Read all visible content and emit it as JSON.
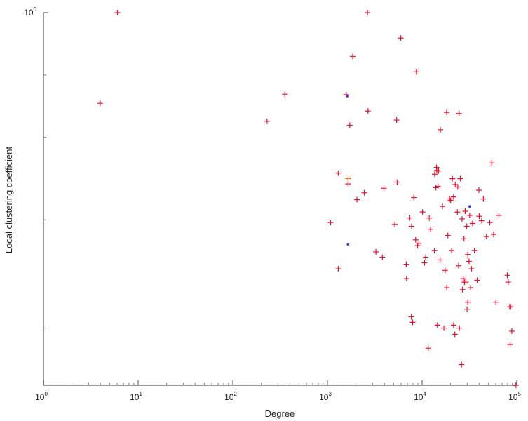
{
  "chart_data": {
    "type": "scatter",
    "xlabel": "Degree",
    "ylabel": "Local clustering coefficient",
    "x_scale": "log",
    "y_scale": "log",
    "xlim": [
      1,
      100000
    ],
    "ylim": [
      0.0159,
      1
    ],
    "x_ticks": [
      {
        "value": 1,
        "base": "10",
        "exp": "0"
      },
      {
        "value": 10,
        "base": "10",
        "exp": "1"
      },
      {
        "value": 100,
        "base": "10",
        "exp": "2"
      },
      {
        "value": 1000,
        "base": "10",
        "exp": "3"
      },
      {
        "value": 10000,
        "base": "10",
        "exp": "4"
      },
      {
        "value": 100000,
        "base": "10",
        "exp": "5"
      }
    ],
    "y_ticks": [
      {
        "value": 1,
        "base": "10",
        "exp": "0"
      }
    ],
    "y_minor_ticks": [
      0.5,
      0.25,
      0.1,
      0.03
    ],
    "grid": false,
    "marker_color": "#e8112d",
    "secondary_color": "#2233ee",
    "series": [
      {
        "marker": "plus",
        "color": "#e8112d",
        "points": [
          [
            6.05,
            1.0
          ],
          [
            3.97,
            0.365
          ],
          [
            230,
            0.299
          ],
          [
            355,
            0.404
          ],
          [
            1580,
            0.402
          ],
          [
            1720,
            0.286
          ],
          [
            1850,
            0.615
          ],
          [
            2680,
            0.335
          ],
          [
            2650,
            1.0
          ],
          [
            5950,
            0.754
          ],
          [
            8700,
            0.518
          ],
          [
            5380,
            0.303
          ],
          [
            18200,
            0.33
          ],
          [
            24600,
            0.326
          ],
          [
            15600,
            0.272
          ],
          [
            1300,
            0.168
          ],
          [
            1650,
            0.149
          ],
          [
            1080,
            0.097
          ],
          [
            1300,
            0.058
          ],
          [
            2050,
            0.125
          ],
          [
            2450,
            0.135
          ],
          [
            3250,
            0.07
          ],
          [
            3800,
            0.066
          ],
          [
            3950,
            0.142
          ],
          [
            5150,
            0.095
          ],
          [
            5450,
            0.152
          ],
          [
            6800,
            0.061
          ],
          [
            6850,
            0.052
          ],
          [
            7400,
            0.102
          ],
          [
            7750,
            0.093
          ],
          [
            8180,
            0.128
          ],
          [
            8550,
            0.08
          ],
          [
            8950,
            0.075
          ],
          [
            9250,
            0.077
          ],
          [
            10100,
            0.109
          ],
          [
            10600,
            0.062
          ],
          [
            10900,
            0.066
          ],
          [
            11900,
            0.102
          ],
          [
            12300,
            0.09
          ],
          [
            7700,
            0.034
          ],
          [
            13500,
            0.071
          ],
          [
            13600,
            0.166
          ],
          [
            14000,
            0.143
          ],
          [
            14200,
            0.179
          ],
          [
            14300,
            0.173
          ],
          [
            14700,
            0.145
          ],
          [
            14900,
            0.172
          ],
          [
            15500,
            0.064
          ],
          [
            16400,
            0.116
          ],
          [
            17500,
            0.057
          ],
          [
            18200,
            0.047
          ],
          [
            18700,
            0.084
          ],
          [
            19500,
            0.126
          ],
          [
            20000,
            0.124
          ],
          [
            20500,
            0.071
          ],
          [
            20900,
            0.158
          ],
          [
            21500,
            0.129
          ],
          [
            22400,
            0.148
          ],
          [
            23800,
            0.144
          ],
          [
            23600,
            0.109
          ],
          [
            24300,
            0.06
          ],
          [
            25300,
            0.158
          ],
          [
            26400,
            0.101
          ],
          [
            26700,
            0.046
          ],
          [
            27200,
            0.052
          ],
          [
            27700,
            0.081
          ],
          [
            28000,
            0.05
          ],
          [
            28500,
            0.11
          ],
          [
            29000,
            0.05
          ],
          [
            29600,
            0.093
          ],
          [
            30400,
            0.068
          ],
          [
            31300,
            0.063
          ],
          [
            31800,
            0.105
          ],
          [
            32500,
            0.047
          ],
          [
            33200,
            0.058
          ],
          [
            34100,
            0.096
          ],
          [
            35700,
            0.071
          ],
          [
            38100,
            0.051
          ],
          [
            39800,
            0.139
          ],
          [
            40100,
            0.104
          ],
          [
            42600,
            0.099
          ],
          [
            44400,
            0.126
          ],
          [
            47800,
            0.083
          ],
          [
            51900,
            0.097
          ],
          [
            54400,
            0.188
          ],
          [
            56900,
            0.085
          ],
          [
            60200,
            0.04
          ],
          [
            64700,
            0.105
          ],
          [
            79400,
            0.054
          ],
          [
            81200,
            0.05
          ],
          [
            84100,
            0.038
          ],
          [
            86200,
            0.038
          ],
          [
            85100,
            0.025
          ],
          [
            88600,
            0.029
          ],
          [
            98000,
            0.0159
          ],
          [
            22200,
            0.028
          ],
          [
            21500,
            0.031
          ],
          [
            24800,
            0.03
          ],
          [
            30400,
            0.04
          ],
          [
            14500,
            0.031
          ],
          [
            17000,
            0.03
          ],
          [
            11600,
            0.024
          ],
          [
            26100,
            0.02
          ],
          [
            29800,
            0.037
          ],
          [
            7950,
            0.032
          ]
        ]
      },
      {
        "marker": "dot",
        "color": "#2233ee",
        "points": [
          [
            1640,
            0.395
          ],
          [
            1650,
            0.076
          ],
          [
            31800,
            0.116
          ]
        ]
      },
      {
        "marker": "plus",
        "color": "#e8711d",
        "points": [
          [
            1650,
            0.158
          ]
        ]
      }
    ]
  }
}
